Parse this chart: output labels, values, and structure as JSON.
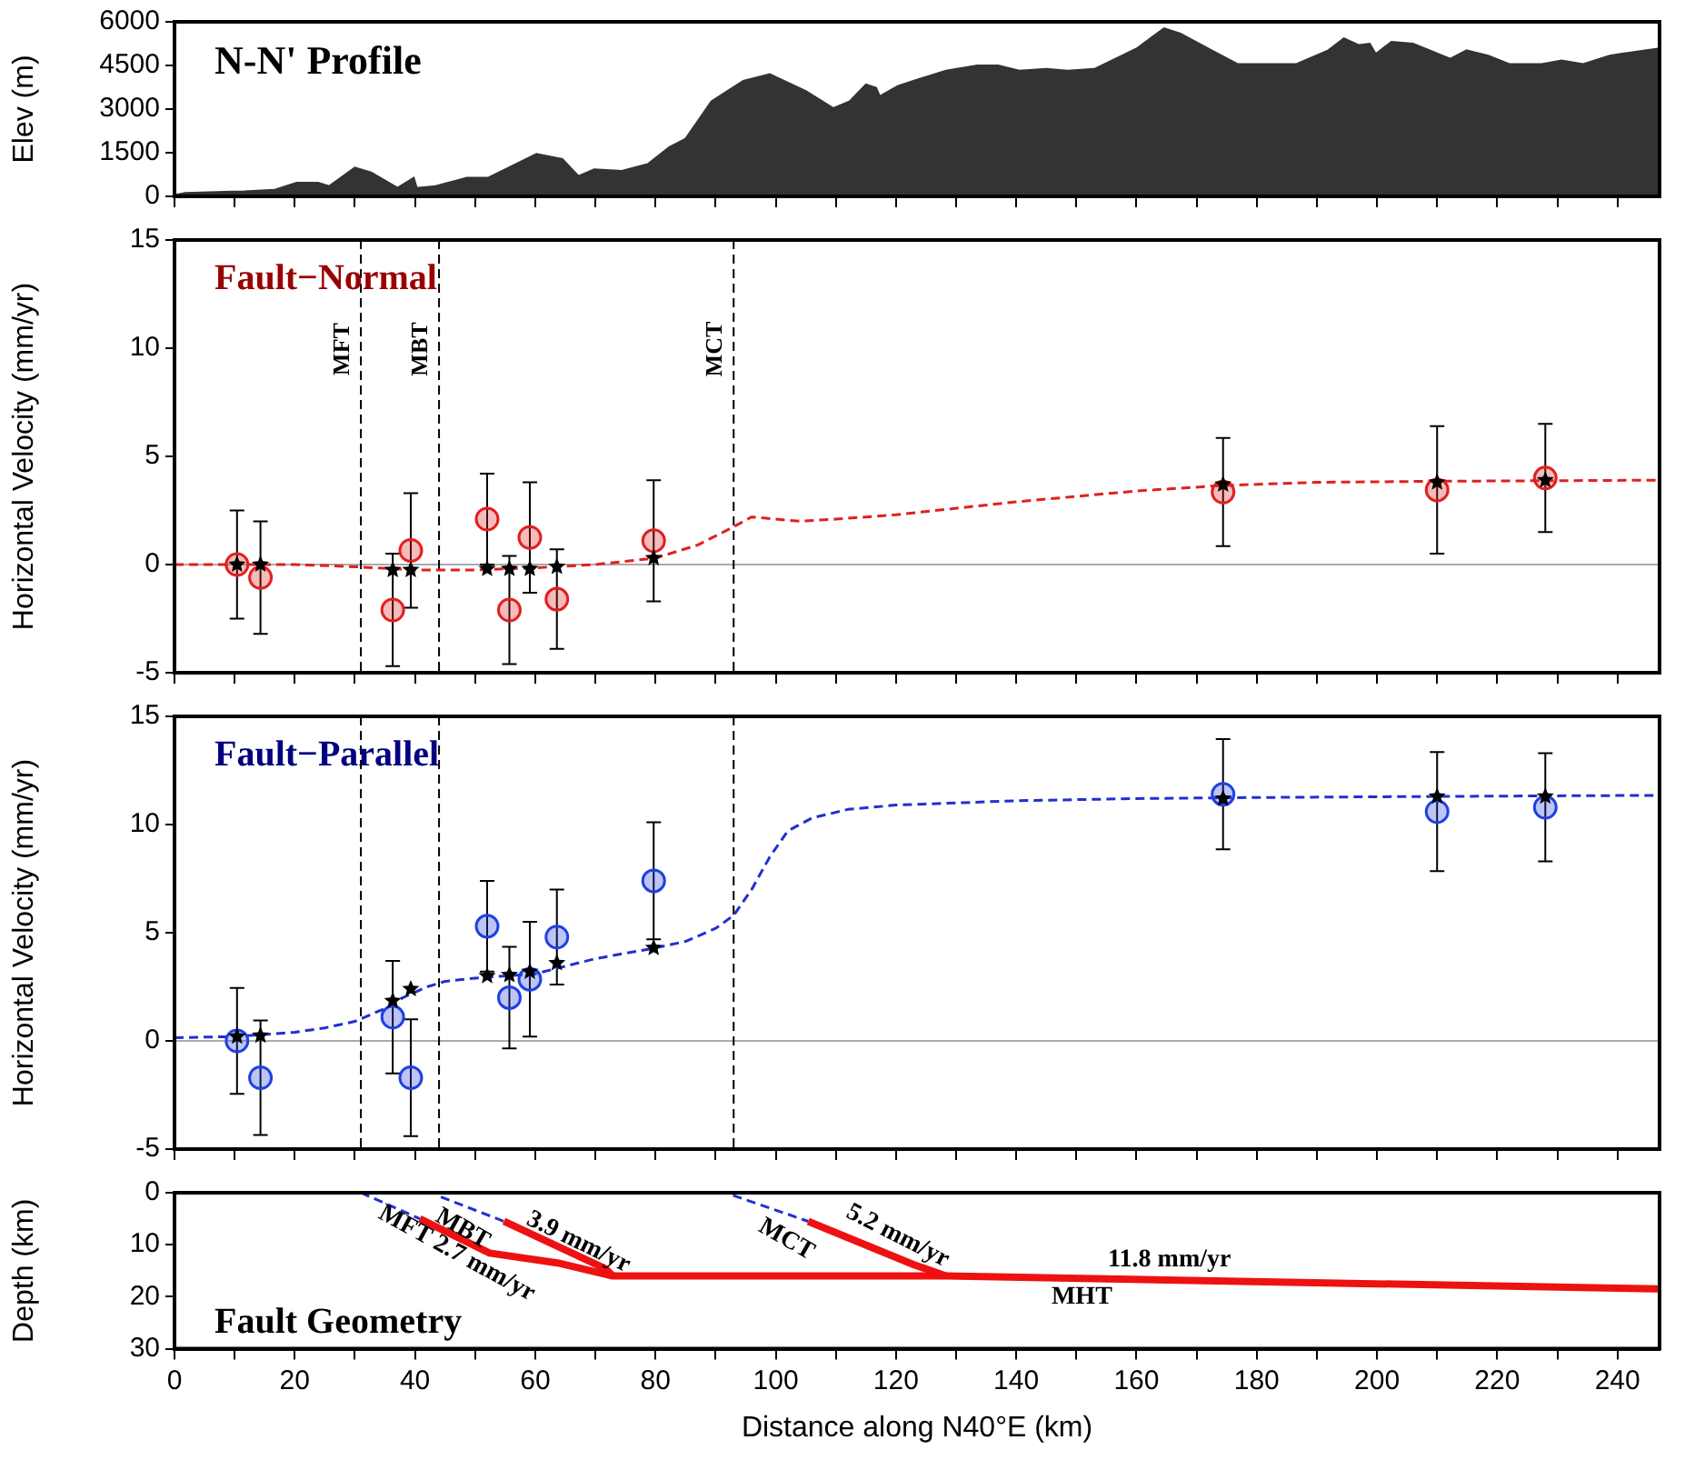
{
  "chart_data": [
    {
      "type": "area",
      "title": "N-N' Profile",
      "ylabel": "Elev (m)",
      "xlim": [
        0,
        247
      ],
      "xticks": [
        0,
        {
          "value": 10,
          "label": null
        },
        20,
        {
          "value": 30,
          "label": null
        },
        40,
        {
          "value": 50,
          "label": null
        },
        60,
        {
          "value": 70,
          "label": null
        },
        80,
        {
          "value": 90,
          "label": null
        },
        100,
        {
          "value": 110,
          "label": null
        },
        120,
        {
          "value": 130,
          "label": null
        },
        140,
        {
          "value": 150,
          "label": null
        },
        160,
        {
          "value": 170,
          "label": null
        },
        180,
        {
          "value": 190,
          "label": null
        },
        200,
        {
          "value": 210,
          "label": null
        },
        220,
        {
          "value": 230,
          "label": null
        },
        240
      ],
      "ylim": [
        0,
        6000
      ],
      "yticks": [
        0,
        1500,
        3000,
        4500,
        6000
      ],
      "tick_labels": "y",
      "grid": false,
      "legend": false,
      "series": [
        {
          "color": "#333333",
          "x": [
            0,
            1.8,
            11.6,
            16.7,
            20.3,
            23.9,
            25.7,
            30,
            32.7,
            37.1,
            39.8,
            40.3,
            43.4,
            48.6,
            52.2,
            60.2,
            64.5,
            67.2,
            69.8,
            74.4,
            78.7,
            82.3,
            85,
            89.3,
            94.6,
            99,
            105,
            109.6,
            112.3,
            115,
            116.7,
            117.3,
            120.3,
            122.9,
            128.3,
            133.5,
            137,
            140.5,
            145,
            148.5,
            153,
            160,
            164.6,
            167.3,
            172.5,
            176.8,
            186.6,
            191.9,
            194.5,
            197,
            198.8,
            199.8,
            202.4,
            206,
            212.2,
            214.9,
            218.5,
            222,
            227.4,
            230.7,
            234.3,
            238.7,
            246.7
          ],
          "values": [
            50,
            120,
            175,
            230,
            470,
            470,
            350,
            990,
            820,
            290,
            640,
            290,
            350,
            640,
            640,
            1460,
            1280,
            700,
            930,
            875,
            1110,
            1690,
            1980,
            3270,
            3970,
            4200,
            3620,
            3030,
            3270,
            3850,
            3735,
            3440,
            3790,
            3970,
            4320,
            4500,
            4500,
            4320,
            4380,
            4320,
            4380,
            5080,
            5780,
            5600,
            5020,
            4550,
            4550,
            5020,
            5430,
            5200,
            5250,
            4900,
            5310,
            5250,
            4730,
            5020,
            4840,
            4550,
            4550,
            4670,
            4550,
            4840,
            5080
          ]
        }
      ]
    },
    {
      "type": "scatter",
      "title": "Fault−Normal",
      "ylabel": "Horizontal Velocity (mm/yr)",
      "xlim": [
        0,
        247
      ],
      "xticks": [
        0,
        {
          "value": 10,
          "label": null
        },
        20,
        {
          "value": 30,
          "label": null
        },
        40,
        {
          "value": 50,
          "label": null
        },
        60,
        {
          "value": 70,
          "label": null
        },
        80,
        {
          "value": 90,
          "label": null
        },
        100,
        {
          "value": 110,
          "label": null
        },
        120,
        {
          "value": 130,
          "label": null
        },
        140,
        {
          "value": 150,
          "label": null
        },
        160,
        {
          "value": 170,
          "label": null
        },
        180,
        {
          "value": 190,
          "label": null
        },
        200,
        {
          "value": 210,
          "label": null
        },
        220,
        {
          "value": 230,
          "label": null
        },
        240
      ],
      "ylim": [
        -5,
        15
      ],
      "yticks": [
        -5,
        0,
        5,
        10,
        15
      ],
      "tick_labels": "y",
      "grid": false,
      "legend": false,
      "ref_lines": [
        {
          "axis": "y",
          "value": 0,
          "label": null,
          "color": "#aaaaaa",
          "line_style": "solid"
        },
        {
          "axis": "x",
          "value": 31,
          "label": "MFT",
          "color": "#000000",
          "line_style": "dashed"
        },
        {
          "axis": "x",
          "value": 44,
          "label": "MBT",
          "color": "#000000",
          "line_style": "dashed"
        },
        {
          "axis": "x",
          "value": 93,
          "label": "MCT",
          "color": "#000000",
          "line_style": "dashed"
        }
      ],
      "series": [
        {
          "type": "line",
          "color": "#e02020",
          "line_style": "dashed",
          "marker": "none",
          "x": [
            0,
            20,
            30,
            40,
            50,
            60,
            70,
            80,
            87,
            92,
            96,
            100,
            104,
            110,
            120,
            140,
            160,
            174,
            190,
            210,
            247
          ],
          "values": [
            0,
            0,
            -0.1,
            -0.25,
            -0.25,
            -0.15,
            0,
            0.3,
            0.9,
            1.6,
            2.2,
            2.1,
            2.0,
            2.1,
            2.3,
            2.9,
            3.4,
            3.65,
            3.8,
            3.85,
            3.9
          ]
        },
        {
          "color": "#e02020",
          "marker": "circle",
          "x": [
            10.4,
            14.3,
            36.3,
            39.3,
            52,
            55.7,
            59.1,
            63.6,
            79.7,
            174.4,
            210,
            228
          ],
          "values": [
            0,
            -0.6,
            -2.1,
            0.65,
            2.1,
            -2.1,
            1.25,
            -1.6,
            1.1,
            3.35,
            3.45,
            4.0
          ],
          "errors": [
            2.5,
            2.6,
            2.6,
            2.65,
            2.1,
            2.5,
            2.55,
            2.3,
            2.8,
            2.5,
            2.95,
            2.5
          ]
        },
        {
          "color": "#000000",
          "marker": "star",
          "x": [
            10.4,
            14.3,
            36.3,
            39.3,
            52,
            55.7,
            59.1,
            63.6,
            79.7,
            174.4,
            210,
            228
          ],
          "values": [
            0,
            0,
            -0.25,
            -0.25,
            -0.2,
            -0.2,
            -0.2,
            -0.1,
            0.3,
            3.7,
            3.8,
            3.9
          ]
        }
      ]
    },
    {
      "type": "scatter",
      "title": "Fault−Parallel",
      "ylabel": "Horizontal Velocity (mm/yr)",
      "xlim": [
        0,
        247
      ],
      "xticks": [
        0,
        {
          "value": 10,
          "label": null
        },
        20,
        {
          "value": 30,
          "label": null
        },
        40,
        {
          "value": 50,
          "label": null
        },
        60,
        {
          "value": 70,
          "label": null
        },
        80,
        {
          "value": 90,
          "label": null
        },
        100,
        {
          "value": 110,
          "label": null
        },
        120,
        {
          "value": 130,
          "label": null
        },
        140,
        {
          "value": 150,
          "label": null
        },
        160,
        {
          "value": 170,
          "label": null
        },
        180,
        {
          "value": 190,
          "label": null
        },
        200,
        {
          "value": 210,
          "label": null
        },
        220,
        {
          "value": 230,
          "label": null
        },
        240
      ],
      "ylim": [
        -5,
        15
      ],
      "yticks": [
        -5,
        0,
        5,
        10,
        15
      ],
      "tick_labels": "y",
      "grid": false,
      "legend": false,
      "ref_lines": [
        {
          "axis": "y",
          "value": 0,
          "label": null,
          "color": "#aaaaaa",
          "line_style": "solid"
        },
        {
          "axis": "x",
          "value": 31,
          "label": null,
          "color": "#000000",
          "line_style": "dashed"
        },
        {
          "axis": "x",
          "value": 44,
          "label": null,
          "color": "#000000",
          "line_style": "dashed"
        },
        {
          "axis": "x",
          "value": 93,
          "label": null,
          "color": "#000000",
          "line_style": "dashed"
        }
      ],
      "series": [
        {
          "type": "line",
          "color": "#2030d0",
          "line_style": "dashed",
          "marker": "none",
          "x": [
            0,
            10,
            20,
            25,
            30,
            35,
            38,
            42,
            45,
            50,
            60,
            70,
            80,
            85,
            90,
            93,
            96,
            99,
            102,
            106,
            112,
            120,
            140,
            160,
            180,
            210,
            247
          ],
          "values": [
            0.15,
            0.2,
            0.4,
            0.6,
            0.9,
            1.5,
            2.0,
            2.5,
            2.75,
            2.9,
            3.1,
            3.8,
            4.3,
            4.6,
            5.2,
            5.8,
            7.0,
            8.5,
            9.7,
            10.3,
            10.7,
            10.9,
            11.1,
            11.2,
            11.25,
            11.3,
            11.35
          ]
        },
        {
          "color": "#2040e0",
          "marker": "circle",
          "x": [
            10.4,
            14.3,
            36.3,
            39.3,
            52,
            55.7,
            59.1,
            63.6,
            79.7,
            174.4,
            210,
            228
          ],
          "values": [
            0,
            -1.7,
            1.1,
            -1.7,
            5.3,
            2.0,
            2.85,
            4.8,
            7.4,
            11.4,
            10.6,
            10.8
          ],
          "errors": [
            2.45,
            2.65,
            2.6,
            2.7,
            2.1,
            2.35,
            2.65,
            2.2,
            2.7,
            2.55,
            2.75,
            2.5
          ]
        },
        {
          "color": "#000000",
          "marker": "star",
          "x": [
            10.4,
            14.3,
            36.3,
            39.3,
            52,
            55.7,
            59.1,
            63.6,
            79.7,
            174.4,
            210,
            228
          ],
          "values": [
            0.2,
            0.25,
            1.85,
            2.4,
            3.0,
            3.05,
            3.2,
            3.6,
            4.3,
            11.2,
            11.3,
            11.3
          ]
        }
      ]
    },
    {
      "type": "line",
      "title": "Fault Geometry",
      "xlabel": "Distance along N40°E (km)",
      "ylabel": "Depth (km)",
      "xlim": [
        0,
        247
      ],
      "xticks": [
        0,
        {
          "value": 10,
          "label": null
        },
        20,
        {
          "value": 30,
          "label": null
        },
        40,
        {
          "value": 50,
          "label": null
        },
        60,
        {
          "value": 70,
          "label": null
        },
        80,
        {
          "value": 90,
          "label": null
        },
        100,
        {
          "value": 110,
          "label": null
        },
        120,
        {
          "value": 130,
          "label": null
        },
        140,
        {
          "value": 150,
          "label": null
        },
        160,
        {
          "value": 170,
          "label": null
        },
        180,
        {
          "value": 190,
          "label": null
        },
        200,
        {
          "value": 210,
          "label": null
        },
        220,
        {
          "value": 230,
          "label": null
        },
        240
      ],
      "ylim": [
        30,
        0
      ],
      "yticks": [
        0,
        10,
        20,
        30
      ],
      "grid": false,
      "legend": false,
      "annotations": [
        "MFT 2.7 mm/yr",
        "MBT",
        "3.9 mm/yr",
        "MCT",
        "5.2 mm/yr",
        "11.8 mm/yr",
        "MHT"
      ],
      "series": [
        {
          "color": "#ee1111",
          "line_style": "solid",
          "marker": "none",
          "x": [
            40.8,
            52.4,
            63.7,
            72.9,
            128.3,
            246.7
          ],
          "values": [
            5.0,
            11.6,
            13.5,
            16.0,
            16.0,
            18.5
          ]
        },
        {
          "color": "#ee1111",
          "line_style": "solid",
          "marker": "none",
          "x": [
            54.8,
            71.7,
            72.9
          ],
          "values": [
            5.5,
            14.6,
            16.0
          ]
        },
        {
          "color": "#ee1111",
          "line_style": "solid",
          "marker": "none",
          "x": [
            105.4,
            122.9,
            128.3
          ],
          "values": [
            5.5,
            13.8,
            16.0
          ]
        },
        {
          "color": "#2030d0",
          "line_style": "dashed",
          "marker": "none",
          "x": [
            31,
            40.8
          ],
          "values": [
            0,
            5.0
          ]
        },
        {
          "color": "#2030d0",
          "line_style": "dashed",
          "marker": "none",
          "x": [
            44.3,
            54.8
          ],
          "values": [
            0.8,
            5.5
          ]
        },
        {
          "color": "#2030d0",
          "line_style": "dashed",
          "marker": "none",
          "x": [
            92.9,
            105.4
          ],
          "values": [
            0.5,
            5.5
          ]
        }
      ]
    }
  ]
}
